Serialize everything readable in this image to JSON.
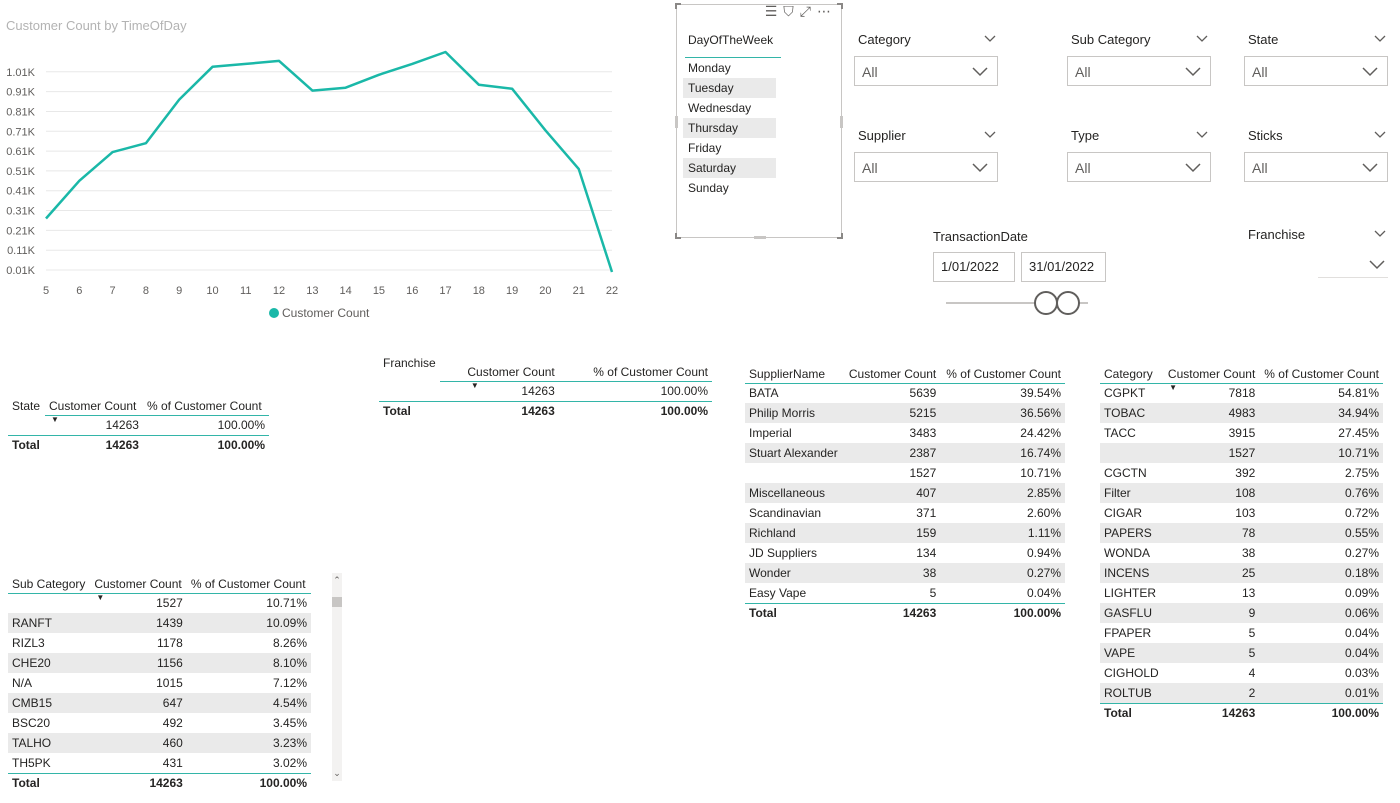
{
  "chart": {
    "title": "Customer Count by TimeOfDay",
    "legend_label": "Customer Count",
    "color": "#1AB8A8"
  },
  "chart_data": {
    "type": "line",
    "title": "Customer Count by TimeOfDay",
    "x": [
      5,
      6,
      7,
      8,
      9,
      10,
      11,
      12,
      13,
      14,
      15,
      16,
      17,
      18,
      19,
      20,
      21,
      22
    ],
    "series": [
      {
        "name": "Customer Count",
        "values": [
          270,
          460,
          605,
          650,
          870,
          1035,
          1050,
          1065,
          915,
          930,
          995,
          1050,
          1110,
          945,
          925,
          715,
          520,
          0
        ]
      }
    ],
    "y_ticks": [
      "0.01K",
      "0.11K",
      "0.21K",
      "0.31K",
      "0.41K",
      "0.51K",
      "0.61K",
      "0.71K",
      "0.81K",
      "0.91K",
      "1.01K"
    ],
    "y_tick_values": [
      10,
      110,
      210,
      310,
      410,
      510,
      610,
      710,
      810,
      910,
      1010
    ],
    "ylim": [
      0,
      1120
    ],
    "grid": true,
    "legend": "bottom-center"
  },
  "day_slicer": {
    "header": "DayOfTheWeek",
    "items": [
      "Monday",
      "Tuesday",
      "Wednesday",
      "Thursday",
      "Friday",
      "Saturday",
      "Sunday"
    ]
  },
  "filters": {
    "category": {
      "label": "Category",
      "value": "All"
    },
    "sub_category": {
      "label": "Sub Category",
      "value": "All"
    },
    "state": {
      "label": "State",
      "value": "All"
    },
    "supplier": {
      "label": "Supplier",
      "value": "All"
    },
    "type": {
      "label": "Type",
      "value": "All"
    },
    "sticks": {
      "label": "Sticks",
      "value": "All"
    },
    "franchise": {
      "label": "Franchise",
      "value": ""
    }
  },
  "date_range": {
    "label": "TransactionDate",
    "start": "1/01/2022",
    "end": "31/01/2022"
  },
  "state_table": {
    "headers": [
      "State",
      "Customer Count",
      "% of Customer Count"
    ],
    "rows": [
      [
        "",
        "14263",
        "100.00%"
      ]
    ],
    "total": [
      "Total",
      "14263",
      "100.00%"
    ]
  },
  "franchise_table": {
    "headers": [
      "Franchise",
      "Customer Count",
      "% of Customer Count"
    ],
    "rows": [
      [
        "",
        "14263",
        "100.00%"
      ]
    ],
    "total": [
      "Total",
      "14263",
      "100.00%"
    ]
  },
  "supplier_table": {
    "headers": [
      "SupplierName",
      "Customer Count",
      "% of Customer Count"
    ],
    "rows": [
      [
        "BATA",
        "5639",
        "39.54%"
      ],
      [
        "Philip Morris",
        "5215",
        "36.56%"
      ],
      [
        "Imperial",
        "3483",
        "24.42%"
      ],
      [
        "Stuart Alexander",
        "2387",
        "16.74%"
      ],
      [
        "",
        "1527",
        "10.71%"
      ],
      [
        "Miscellaneous",
        "407",
        "2.85%"
      ],
      [
        "Scandinavian",
        "371",
        "2.60%"
      ],
      [
        "Richland",
        "159",
        "1.11%"
      ],
      [
        "JD Suppliers",
        "134",
        "0.94%"
      ],
      [
        "Wonder",
        "38",
        "0.27%"
      ],
      [
        "Easy Vape",
        "5",
        "0.04%"
      ]
    ],
    "total": [
      "Total",
      "14263",
      "100.00%"
    ]
  },
  "category_table": {
    "headers": [
      "Category",
      "Customer Count",
      "% of Customer Count"
    ],
    "rows": [
      [
        "CGPKT",
        "7818",
        "54.81%"
      ],
      [
        "TOBAC",
        "4983",
        "34.94%"
      ],
      [
        "TACC",
        "3915",
        "27.45%"
      ],
      [
        "",
        "1527",
        "10.71%"
      ],
      [
        "CGCTN",
        "392",
        "2.75%"
      ],
      [
        "Filter",
        "108",
        "0.76%"
      ],
      [
        "CIGAR",
        "103",
        "0.72%"
      ],
      [
        "PAPERS",
        "78",
        "0.55%"
      ],
      [
        "WONDA",
        "38",
        "0.27%"
      ],
      [
        "INCENS",
        "25",
        "0.18%"
      ],
      [
        "LIGHTER",
        "13",
        "0.09%"
      ],
      [
        "GASFLU",
        "9",
        "0.06%"
      ],
      [
        "FPAPER",
        "5",
        "0.04%"
      ],
      [
        "VAPE",
        "5",
        "0.04%"
      ],
      [
        "CIGHOLD",
        "4",
        "0.03%"
      ],
      [
        "ROLTUB",
        "2",
        "0.01%"
      ]
    ],
    "total": [
      "Total",
      "14263",
      "100.00%"
    ]
  },
  "subcategory_table": {
    "headers": [
      "Sub Category",
      "Customer Count",
      "% of Customer Count"
    ],
    "rows": [
      [
        "",
        "1527",
        "10.71%"
      ],
      [
        "RANFT",
        "1439",
        "10.09%"
      ],
      [
        "RIZL3",
        "1178",
        "8.26%"
      ],
      [
        "CHE20",
        "1156",
        "8.10%"
      ],
      [
        "N/A",
        "1015",
        "7.12%"
      ],
      [
        "CMB15",
        "647",
        "4.54%"
      ],
      [
        "BSC20",
        "492",
        "3.45%"
      ],
      [
        "TALHO",
        "460",
        "3.23%"
      ],
      [
        "TH5PK",
        "431",
        "3.02%"
      ]
    ],
    "total": [
      "Total",
      "14263",
      "100.00%"
    ]
  }
}
